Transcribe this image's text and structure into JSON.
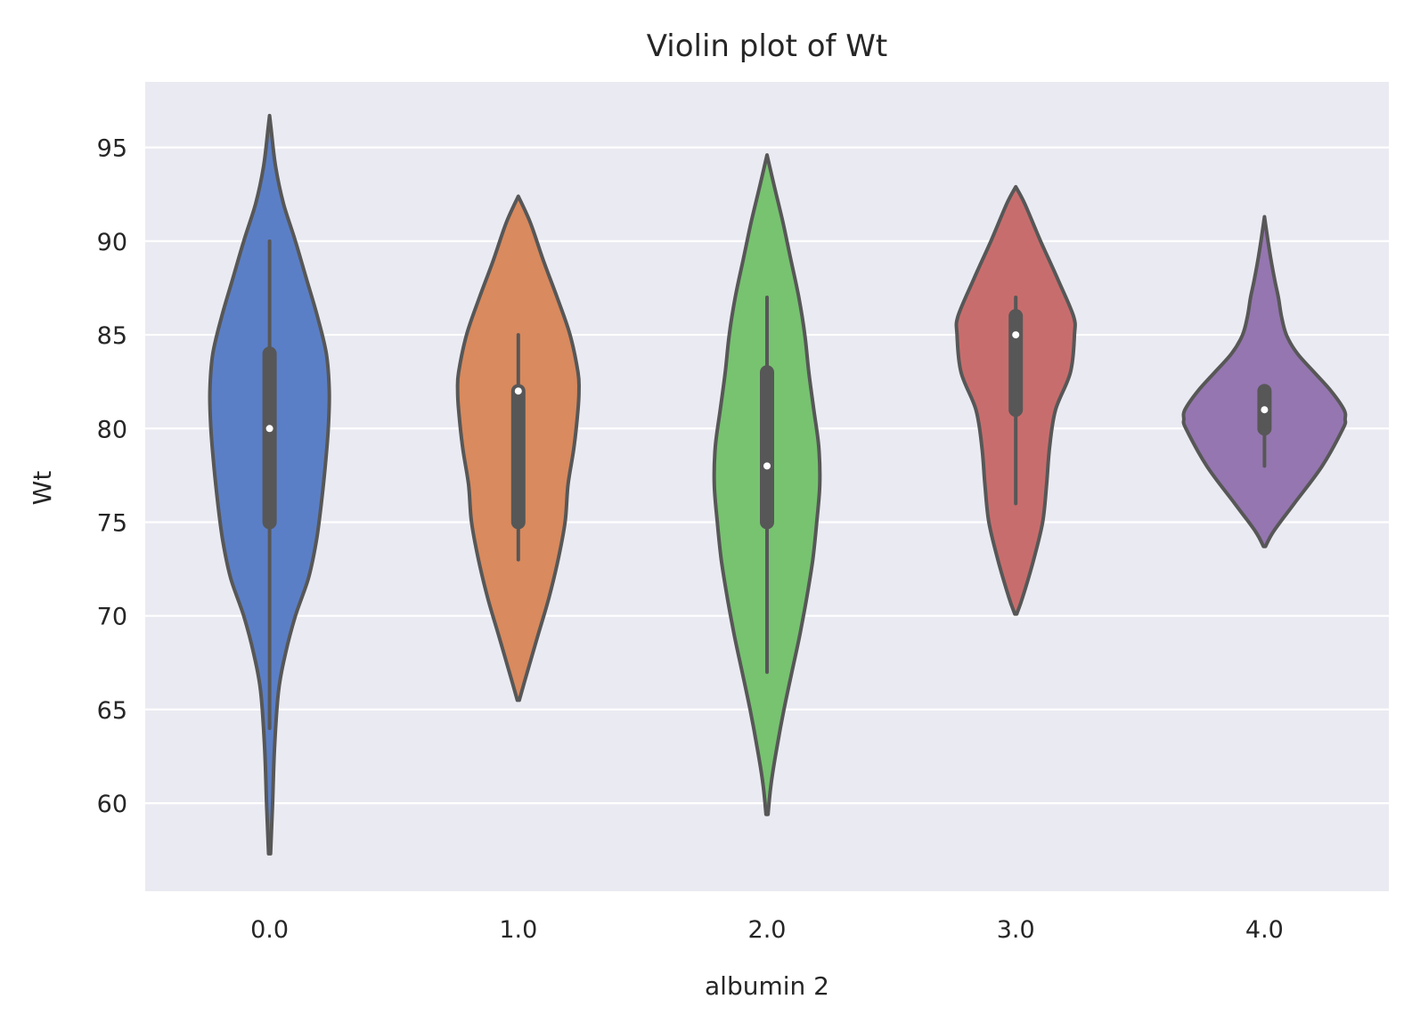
{
  "chart_data": {
    "type": "violin",
    "title": "Violin plot of Wt",
    "xlabel": "albumin 2",
    "ylabel": "Wt",
    "ylim": [
      55.3,
      98.5
    ],
    "yticks": [
      60,
      65,
      70,
      75,
      80,
      85,
      90,
      95
    ],
    "grid": true,
    "legend": "none",
    "categories": [
      "0.0",
      "1.0",
      "2.0",
      "3.0",
      "4.0"
    ],
    "colors": [
      "#5b7fc6",
      "#d98a5e",
      "#77c370",
      "#c86d6d",
      "#9576b0"
    ],
    "edge_color": "#575757",
    "plot_bg": "#eaeaf2",
    "violins": [
      {
        "category": "0.0",
        "y_range": [
          57.3,
          96.7
        ],
        "box": {
          "q1": 75,
          "median": 80,
          "q3": 84,
          "whisker_low": 64,
          "whisker_high": 90
        },
        "profile": [
          [
            57.3,
            0.01
          ],
          [
            60,
            0.03
          ],
          [
            63,
            0.05
          ],
          [
            66,
            0.09
          ],
          [
            68,
            0.16
          ],
          [
            70,
            0.26
          ],
          [
            72,
            0.39
          ],
          [
            74,
            0.47
          ],
          [
            76,
            0.52
          ],
          [
            78,
            0.56
          ],
          [
            80,
            0.59
          ],
          [
            82,
            0.6
          ],
          [
            84,
            0.57
          ],
          [
            86,
            0.48
          ],
          [
            88,
            0.37
          ],
          [
            90,
            0.26
          ],
          [
            92,
            0.14
          ],
          [
            94,
            0.06
          ],
          [
            96,
            0.015
          ],
          [
            96.7,
            0.0
          ]
        ]
      },
      {
        "category": "1.0",
        "y_range": [
          65.5,
          92.4
        ],
        "box": {
          "q1": 75,
          "median": 82,
          "q3": 82,
          "whisker_low": 73,
          "whisker_high": 85
        },
        "profile": [
          [
            65.5,
            0.01
          ],
          [
            67,
            0.09
          ],
          [
            69,
            0.2
          ],
          [
            71,
            0.31
          ],
          [
            73,
            0.4
          ],
          [
            75,
            0.47
          ],
          [
            77,
            0.5
          ],
          [
            79,
            0.56
          ],
          [
            81,
            0.6
          ],
          [
            82,
            0.61
          ],
          [
            83,
            0.6
          ],
          [
            85,
            0.52
          ],
          [
            87,
            0.39
          ],
          [
            89,
            0.25
          ],
          [
            91,
            0.12
          ],
          [
            92.4,
            0.0
          ]
        ]
      },
      {
        "category": "2.0",
        "y_range": [
          59.4,
          94.6
        ],
        "box": {
          "q1": 75,
          "median": 78,
          "q3": 83,
          "whisker_low": 67,
          "whisker_high": 87
        },
        "profile": [
          [
            59.4,
            0.01
          ],
          [
            61,
            0.04
          ],
          [
            63,
            0.1
          ],
          [
            65,
            0.17
          ],
          [
            67,
            0.25
          ],
          [
            69,
            0.33
          ],
          [
            71,
            0.4
          ],
          [
            73,
            0.46
          ],
          [
            75,
            0.5
          ],
          [
            77,
            0.53
          ],
          [
            79,
            0.52
          ],
          [
            81,
            0.47
          ],
          [
            83,
            0.42
          ],
          [
            85,
            0.38
          ],
          [
            87,
            0.32
          ],
          [
            89,
            0.24
          ],
          [
            91,
            0.16
          ],
          [
            93,
            0.07
          ],
          [
            94.6,
            0.0
          ]
        ]
      },
      {
        "category": "3.0",
        "y_range": [
          70.1,
          92.9
        ],
        "box": {
          "q1": 81,
          "median": 85,
          "q3": 86,
          "whisker_low": 76,
          "whisker_high": 87
        },
        "profile": [
          [
            70.1,
            0.01
          ],
          [
            71,
            0.07
          ],
          [
            73,
            0.18
          ],
          [
            75,
            0.27
          ],
          [
            77,
            0.31
          ],
          [
            79,
            0.34
          ],
          [
            81,
            0.4
          ],
          [
            83,
            0.55
          ],
          [
            85,
            0.59
          ],
          [
            86,
            0.58
          ],
          [
            88,
            0.42
          ],
          [
            90,
            0.25
          ],
          [
            92,
            0.09
          ],
          [
            92.9,
            0.0
          ]
        ]
      },
      {
        "category": "4.0",
        "y_range": [
          73.7,
          91.3
        ],
        "box": {
          "q1": 80,
          "median": 81,
          "q3": 82,
          "whisker_low": 78,
          "whisker_high": 82
        },
        "profile": [
          [
            73.7,
            0.01
          ],
          [
            74.5,
            0.09
          ],
          [
            76,
            0.3
          ],
          [
            78,
            0.58
          ],
          [
            80,
            0.79
          ],
          [
            80.5,
            0.81
          ],
          [
            81,
            0.8
          ],
          [
            82,
            0.67
          ],
          [
            83,
            0.5
          ],
          [
            84,
            0.33
          ],
          [
            85,
            0.22
          ],
          [
            86,
            0.17
          ],
          [
            87,
            0.14
          ],
          [
            88,
            0.1
          ],
          [
            89.5,
            0.05
          ],
          [
            91.3,
            0.0
          ]
        ]
      }
    ]
  }
}
